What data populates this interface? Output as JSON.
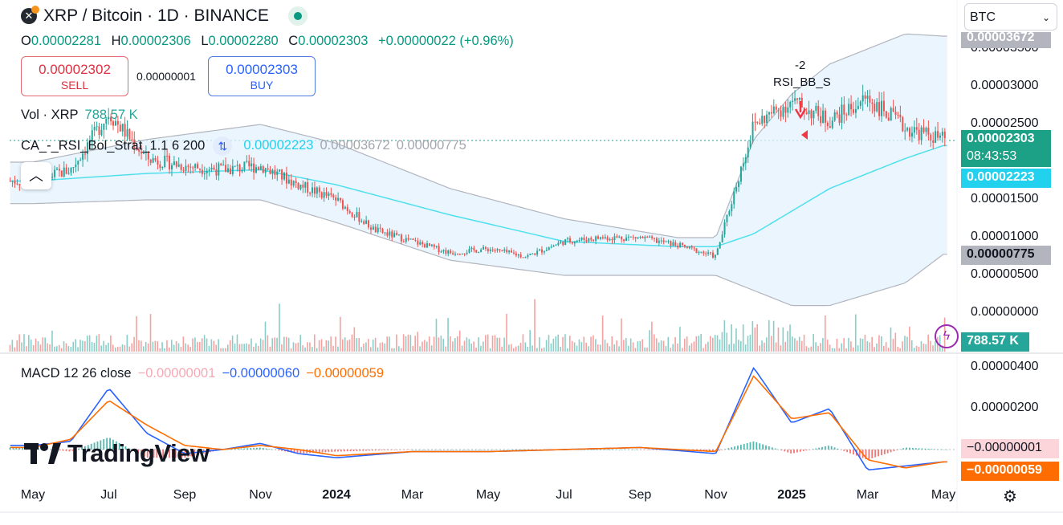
{
  "header": {
    "symbol_icon": "xrp-bitcoin-icon",
    "title": "XRP / Bitcoin · 1D · BINANCE",
    "ohlc": {
      "o_label": "O",
      "o": "0.00002281",
      "h_label": "H",
      "h": "0.00002306",
      "l_label": "L",
      "l": "0.00002280",
      "c_label": "C",
      "c": "0.00002303",
      "change": "+0.00000022 (+0.96%)"
    }
  },
  "trade": {
    "sell_price": "0.00002302",
    "sell_label": "SELL",
    "spread": "0.00000001",
    "buy_price": "0.00002303",
    "buy_label": "BUY"
  },
  "volume": {
    "label": "Vol · XRP",
    "value": "788.57 K"
  },
  "indicator": {
    "name": "CA_-_RSI_Bol_Strat_1.1 6 200",
    "basis": "0.00002223",
    "upper": "0.00003672",
    "lower": "0.00000775"
  },
  "macd": {
    "label": "MACD 12 26 close",
    "hist": "−0.00000001",
    "macd": "−0.00000060",
    "signal": "−0.00000059"
  },
  "signal": {
    "count": "-2",
    "text": "RSI_BB_S"
  },
  "currency_select": {
    "value": "BTC"
  },
  "logo": "TradingView",
  "price_tags": {
    "upper": "0.00003672",
    "last": "0.00002303",
    "countdown": "08:43:53",
    "basis": "0.00002223",
    "lower": "0.00000775",
    "volume": "788.57 K"
  },
  "colors": {
    "up": "#26a69a",
    "down": "#ef5350",
    "band_fill": "#e3f2fd",
    "basis_line": "#4fe0ee",
    "macd_line": "#2962ff",
    "signal_line": "#ff6d00",
    "last_tag": "#1ca186",
    "basis_tag": "#22d1ee",
    "band_tag": "#b2b5be"
  },
  "chart_data": [
    {
      "type": "candlestick",
      "title": "XRP / Bitcoin · 1D · BINANCE",
      "price_axis_ticks": [
        "0.00003500",
        "0.00003000",
        "0.00002500",
        "0.00001500",
        "0.00001000",
        "0.00000500",
        "0.00000000"
      ],
      "time_axis_ticks": [
        "May",
        "Jul",
        "Sep",
        "Nov",
        "2024",
        "Mar",
        "May",
        "Jul",
        "Sep",
        "Nov",
        "2025",
        "Mar",
        "May"
      ],
      "ylim": [
        0,
        3.7e-05
      ],
      "series": [
        {
          "name": "Close (approx.)",
          "x": [
            "2023-05",
            "2023-06",
            "2023-07",
            "2023-08",
            "2023-09",
            "2023-10",
            "2023-11",
            "2023-12",
            "2024-01",
            "2024-02",
            "2024-03",
            "2024-04",
            "2024-05",
            "2024-06",
            "2024-07",
            "2024-08",
            "2024-09",
            "2024-10",
            "2024-11",
            "2024-12",
            "2025-01",
            "2025-02",
            "2025-03",
            "2025-04",
            "2025-05"
          ],
          "values": [
            1.75e-05,
            1.9e-05,
            2.65e-05,
            2.05e-05,
            1.95e-05,
            1.9e-05,
            1.95e-05,
            1.7e-05,
            1.5e-05,
            1.1e-05,
            9.5e-06,
            8e-06,
            8.5e-06,
            7.5e-06,
            9.5e-06,
            1e-05,
            1e-05,
            9e-06,
            7.5e-06,
            2.5e-05,
            2.8e-05,
            2.55e-05,
            2.85e-05,
            2.45e-05,
            2.3e-05
          ]
        },
        {
          "name": "Upper band (approx.)",
          "x": [
            "2023-05",
            "2023-08",
            "2023-11",
            "2024-01",
            "2024-04",
            "2024-07",
            "2024-10",
            "2024-11",
            "2024-12",
            "2025-01",
            "2025-02",
            "2025-04",
            "2025-05"
          ],
          "values": [
            2e-05,
            2.3e-05,
            2.5e-05,
            2.25e-05,
            1.65e-05,
            1.25e-05,
            1e-05,
            1e-05,
            2.3e-05,
            2.9e-05,
            3.3e-05,
            3.7e-05,
            3.67e-05
          ]
        },
        {
          "name": "Basis (approx.)",
          "x": [
            "2023-05",
            "2023-08",
            "2023-11",
            "2024-01",
            "2024-04",
            "2024-07",
            "2024-10",
            "2024-11",
            "2024-12",
            "2025-01",
            "2025-02",
            "2025-04",
            "2025-05"
          ],
          "values": [
            1.75e-05,
            1.85e-05,
            1.9e-05,
            1.7e-05,
            1.3e-05,
            9.5e-06,
            8.8e-06,
            8.8e-06,
            1.05e-05,
            1.35e-05,
            1.65e-05,
            2.05e-05,
            2.22e-05
          ]
        },
        {
          "name": "Lower band (approx.)",
          "x": [
            "2023-05",
            "2023-08",
            "2023-11",
            "2024-01",
            "2024-04",
            "2024-07",
            "2024-10",
            "2024-11",
            "2024-12",
            "2025-01",
            "2025-02",
            "2025-04",
            "2025-05"
          ],
          "values": [
            1.45e-05,
            1.5e-05,
            1.5e-05,
            1.2e-05,
            7e-06,
            5e-06,
            5e-06,
            5e-06,
            3e-06,
            1e-06,
            1e-06,
            4e-06,
            7.8e-06
          ]
        }
      ]
    },
    {
      "type": "line",
      "title": "MACD 12 26 close",
      "price_axis_ticks": [
        "0.00000400",
        "0.00000200"
      ],
      "ylim": [
        -1.5e-06,
        4.5e-06
      ],
      "series": [
        {
          "name": "MACD (approx.)",
          "x": [
            "2023-05",
            "2023-06",
            "2023-07",
            "2023-08",
            "2023-09",
            "2023-10",
            "2023-11",
            "2023-12",
            "2024-01",
            "2024-03",
            "2024-05",
            "2024-07",
            "2024-09",
            "2024-11",
            "2024-12",
            "2025-01",
            "2025-02",
            "2025-03",
            "2025-04",
            "2025-05"
          ],
          "values": [
            2e-07,
            4e-07,
            3e-06,
            8e-07,
            -2e-07,
            0.0,
            3e-07,
            -2e-07,
            -4e-07,
            -1e-07,
            -1e-07,
            0.0,
            1e-07,
            -2e-07,
            4e-06,
            1.3e-06,
            2e-06,
            -1e-06,
            -8e-07,
            -6e-07
          ]
        },
        {
          "name": "Signal (approx.)",
          "x": [
            "2023-05",
            "2023-06",
            "2023-07",
            "2023-08",
            "2023-09",
            "2023-10",
            "2023-11",
            "2023-12",
            "2024-01",
            "2024-03",
            "2024-05",
            "2024-07",
            "2024-09",
            "2024-11",
            "2024-12",
            "2025-01",
            "2025-02",
            "2025-03",
            "2025-04",
            "2025-05"
          ],
          "values": [
            1e-07,
            5e-07,
            2.4e-06,
            1.2e-06,
            2e-07,
            0.0,
            2e-07,
            0.0,
            -3e-07,
            -1e-07,
            -1e-07,
            0.0,
            1e-07,
            -1e-07,
            3.6e-06,
            1.5e-06,
            1.8e-06,
            -5e-07,
            -9e-07,
            -6e-07
          ]
        }
      ]
    }
  ]
}
